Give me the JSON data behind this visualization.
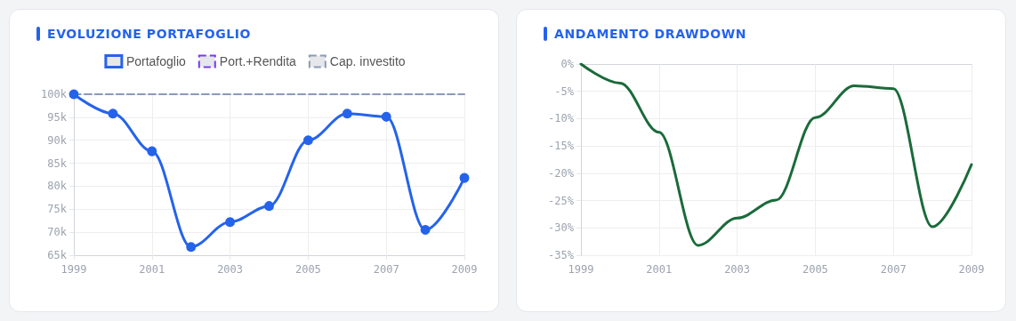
{
  "chart_data": [
    {
      "type": "line",
      "title": "EVOLUZIONE PORTAFOGLIO",
      "x": [
        1999,
        2000,
        2001,
        2002,
        2003,
        2004,
        2005,
        2006,
        2007,
        2008,
        2009
      ],
      "series": [
        {
          "name": "Portafoglio",
          "color": "#2563eb",
          "values": [
            100000,
            95800,
            87600,
            66800,
            72200,
            75700,
            90000,
            95800,
            95100,
            70500,
            81800
          ]
        },
        {
          "name": "Port.+Rendita",
          "color": "#7c3aed",
          "line_style": "dashed",
          "values": [
            null,
            null,
            null,
            null,
            null,
            null,
            null,
            null,
            null,
            null,
            null
          ]
        },
        {
          "name": "Cap. investito",
          "color": "#8a9bb5",
          "line_style": "dashed",
          "marker": "none",
          "x": [
            1999,
            2009
          ],
          "values": [
            100000,
            100000
          ]
        }
      ],
      "xlim": [
        1999,
        2009
      ],
      "xticks": [
        1999,
        2001,
        2003,
        2005,
        2007,
        2009
      ],
      "ylim": [
        65000,
        100000
      ],
      "yticks": [
        {
          "value": 65000,
          "label": "65k"
        },
        {
          "value": 70000,
          "label": "70k"
        },
        {
          "value": 75000,
          "label": "75k"
        },
        {
          "value": 80000,
          "label": "80k"
        },
        {
          "value": 85000,
          "label": "85k"
        },
        {
          "value": 90000,
          "label": "90k"
        },
        {
          "value": 95000,
          "label": "95k"
        },
        {
          "value": 100000,
          "label": "100k"
        }
      ],
      "grid": true,
      "legend": "top",
      "marker": "circle",
      "line_style": "solid"
    },
    {
      "type": "line",
      "title": "ANDAMENTO DRAWDOWN",
      "x": [
        1999,
        2000,
        2001,
        2002,
        2003,
        2004,
        2005,
        2006,
        2007,
        2008,
        2009
      ],
      "series": [
        {
          "color": "#1a6b3a",
          "values": [
            0,
            -3.5,
            -12.5,
            -33.2,
            -28.2,
            -24.9,
            -9.8,
            -4,
            -4.5,
            -29.8,
            -18.4
          ]
        }
      ],
      "xlim": [
        1999,
        2009
      ],
      "xticks": [
        1999,
        2001,
        2003,
        2005,
        2007,
        2009
      ],
      "ylim": [
        -35,
        0
      ],
      "yticks": [
        {
          "value": -35,
          "label": "-35%"
        },
        {
          "value": -30,
          "label": "-30%"
        },
        {
          "value": -25,
          "label": "-25%"
        },
        {
          "value": -20,
          "label": "-20%"
        },
        {
          "value": -15,
          "label": "-15%"
        },
        {
          "value": -10,
          "label": "-10%"
        },
        {
          "value": -5,
          "label": "-5%"
        },
        {
          "value": 0,
          "label": "0%"
        }
      ],
      "grid": true,
      "legend": false,
      "marker": "none",
      "line_style": "solid"
    }
  ]
}
